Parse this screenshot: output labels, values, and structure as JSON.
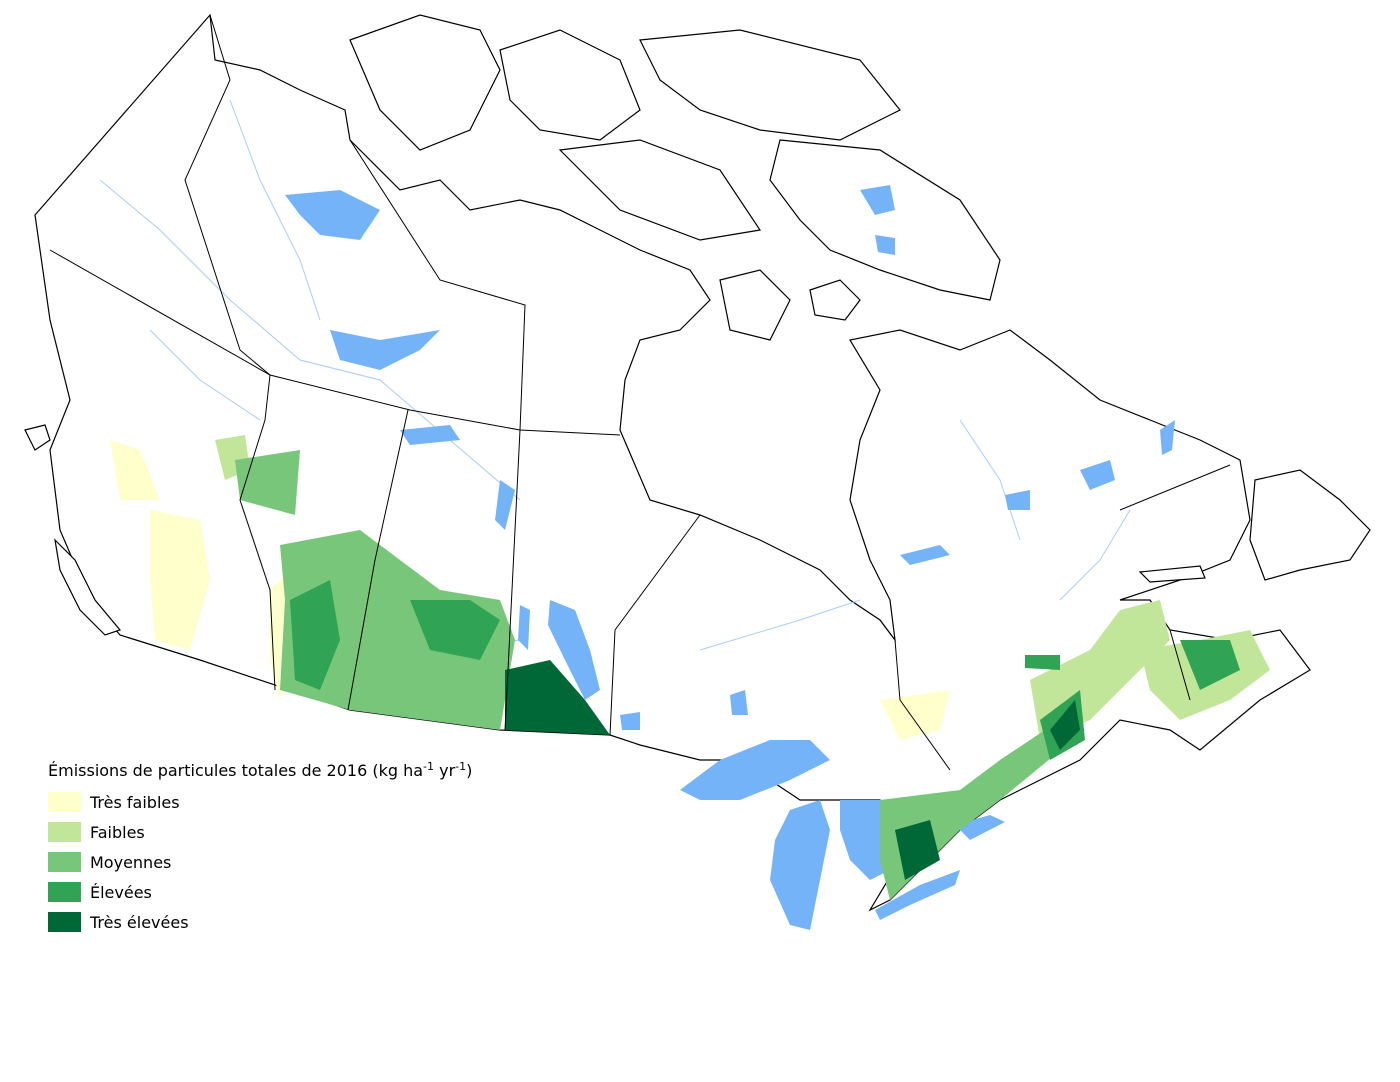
{
  "legend": {
    "title_parts": [
      "Émissions de particules totales de 2016 (kg ha",
      "-1",
      " yr",
      "-1",
      ")"
    ],
    "items": [
      {
        "label": "Très faibles",
        "color": "#ffffcc"
      },
      {
        "label": "Faibles",
        "color": "#c2e699"
      },
      {
        "label": "Moyennes",
        "color": "#78c679"
      },
      {
        "label": "Élevées",
        "color": "#31a354"
      },
      {
        "label": "Très élevées",
        "color": "#006837"
      }
    ]
  }
}
